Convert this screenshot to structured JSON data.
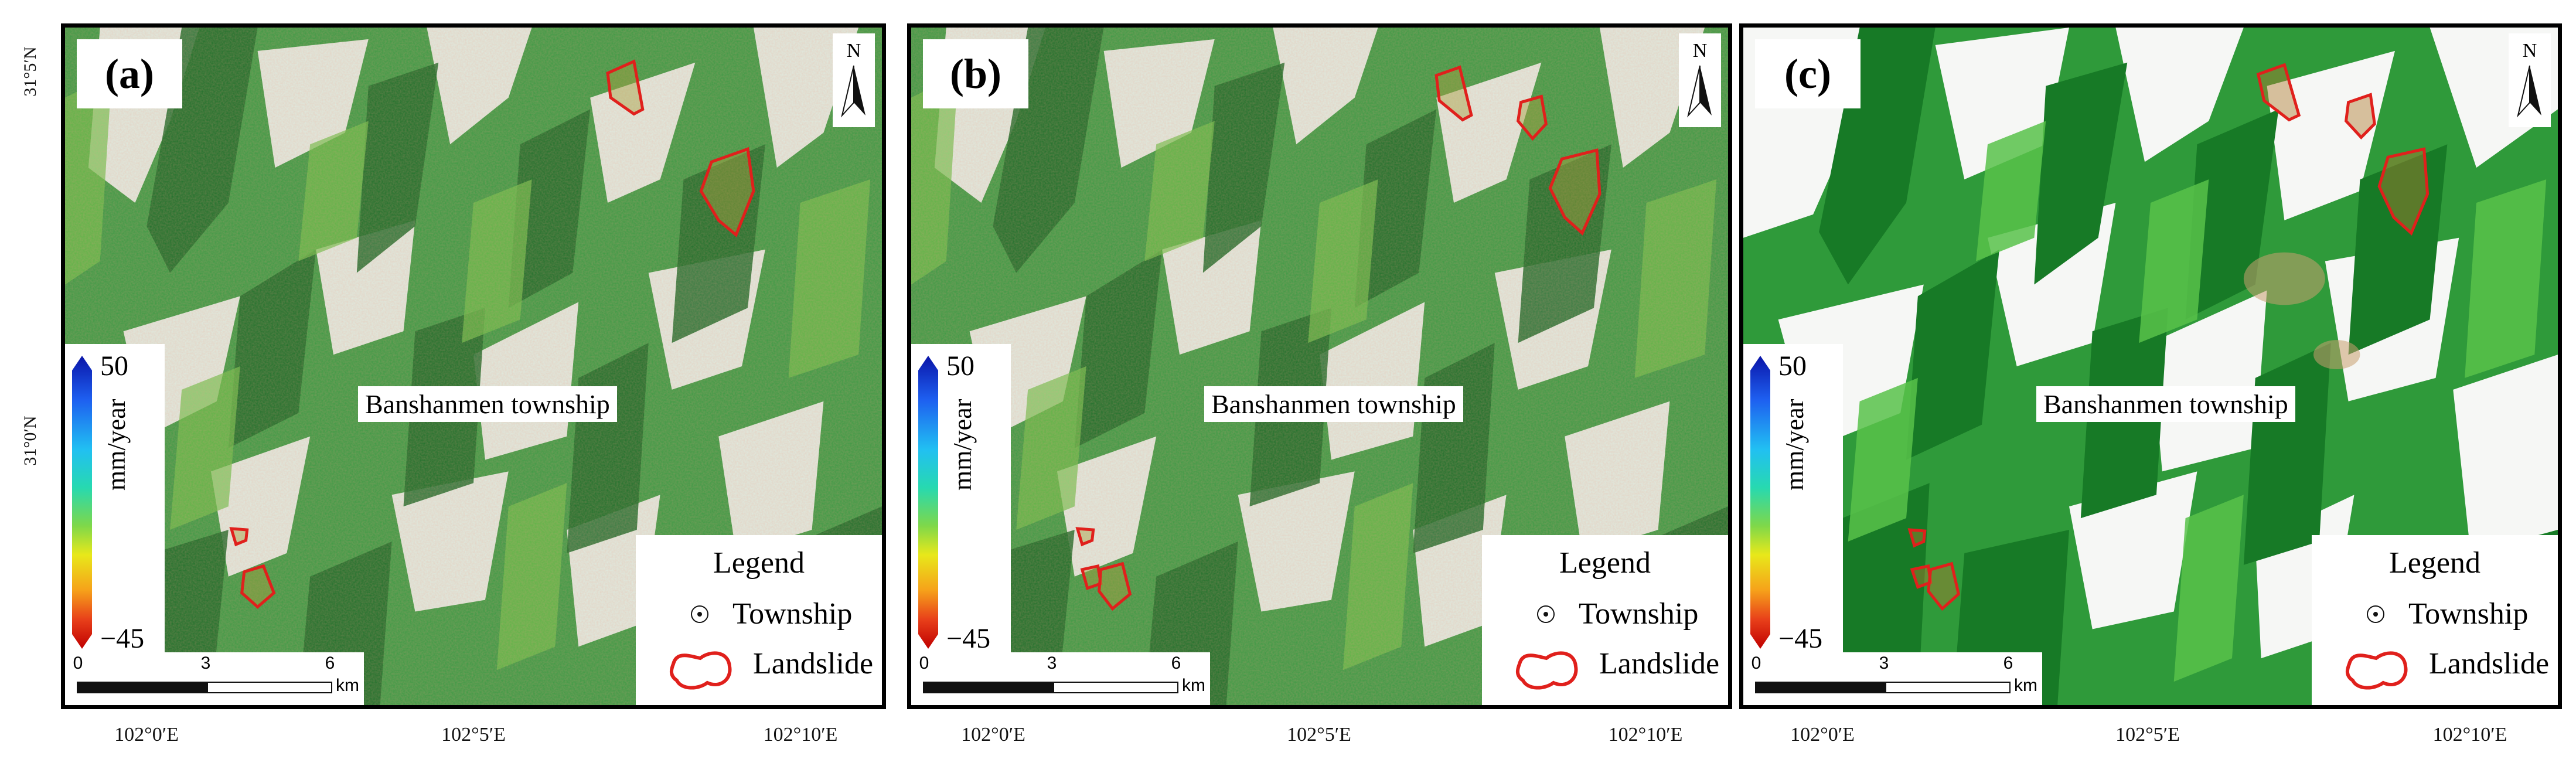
{
  "latitude_labels": [
    "31°5′N",
    "31°0′N"
  ],
  "longitude_labels": [
    "102°0′E",
    "102°5′E",
    "102°10′E"
  ],
  "panels": [
    {
      "label": "(a)",
      "style": "mottled"
    },
    {
      "label": "(b)",
      "style": "mottled"
    },
    {
      "label": "(c)",
      "style": "clean"
    }
  ],
  "township_label": "Banshanmen township",
  "colorbar": {
    "max": "50",
    "min": "−45",
    "unit": "mm/year"
  },
  "legend": {
    "title": "Legend",
    "township": "Township",
    "landslide": "Landslide"
  },
  "scalebar": {
    "ticks": [
      "0",
      "3",
      "6"
    ],
    "unit": "km"
  },
  "north_symbol": "N",
  "colors": {
    "landslide_outline": "#e0201c",
    "frame": "#000000",
    "vegetation": "#2f9a3a",
    "bright_terrain": "#f4f6f4"
  }
}
